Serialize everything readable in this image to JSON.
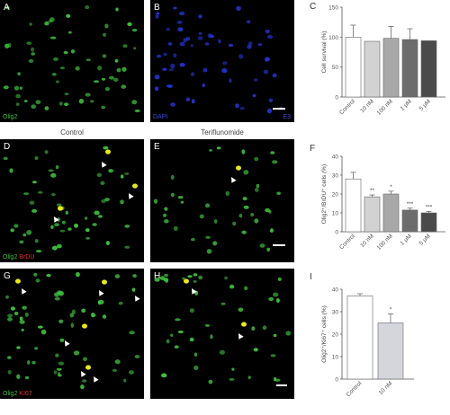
{
  "panels": {
    "A": {
      "letter": "A",
      "stain_g": "Olig2"
    },
    "B": {
      "letter": "B",
      "stain_b": "DAPI",
      "stain_b2": "E3"
    },
    "D": {
      "letter": "D",
      "stain_g": "Olig2",
      "stain_r": "BrDU"
    },
    "E": {
      "letter": "E"
    },
    "G": {
      "letter": "G",
      "stain_g": "Olig2",
      "stain_r": "KI67"
    },
    "H": {
      "letter": "H"
    }
  },
  "conditions": {
    "control": "Control",
    "drug": "Teriflunomide"
  },
  "colors": {
    "nuclei_green": "#3fbf3f",
    "nuclei_blue": "#2233cc",
    "merged": "#e8e81a",
    "bar_white": "#ffffff",
    "bar_light": "#d2d2d2",
    "bar_mid": "#a8a8a8",
    "bar_dark": "#6c6c6c",
    "bar_darkest": "#4a4a4a"
  },
  "chart_data": [
    {
      "panel": "C",
      "type": "bar",
      "ylabel": "Cell survival (%)",
      "categories": [
        "Control",
        "10 nM",
        "100 nM",
        "1 μM",
        "5 μM"
      ],
      "values": [
        100,
        93,
        98,
        96,
        94
      ],
      "errors": [
        20,
        0,
        20,
        18,
        0
      ],
      "sig": [
        "",
        "",
        "",
        "",
        ""
      ],
      "ylim": [
        0,
        150
      ],
      "yticks": [
        "0",
        "50",
        "100",
        "150"
      ]
    },
    {
      "panel": "F",
      "type": "bar",
      "ylabel": "Olig2⁺/BrDU⁺ cells (%)",
      "categories": [
        "Control",
        "10 nM",
        "100 nM",
        "1 μM",
        "5 μM"
      ],
      "values": [
        28,
        18.5,
        20,
        11.5,
        10
      ],
      "errors": [
        3.5,
        1,
        1.5,
        1,
        0.8
      ],
      "sig": [
        "",
        "**",
        "*",
        "***",
        "***"
      ],
      "ylim": [
        0,
        40
      ],
      "yticks": [
        "0",
        "10",
        "20",
        "30",
        "40"
      ]
    },
    {
      "panel": "I",
      "type": "bar",
      "ylabel": "Olig2⁺/Ki67⁺ cells (%)",
      "categories": [
        "Control",
        "10 nM"
      ],
      "values": [
        37,
        25
      ],
      "errors": [
        1,
        4
      ],
      "sig": [
        "",
        "*"
      ],
      "ylim": [
        0,
        40
      ],
      "yticks": [
        "0",
        "10",
        "20",
        "30",
        "40"
      ]
    }
  ]
}
